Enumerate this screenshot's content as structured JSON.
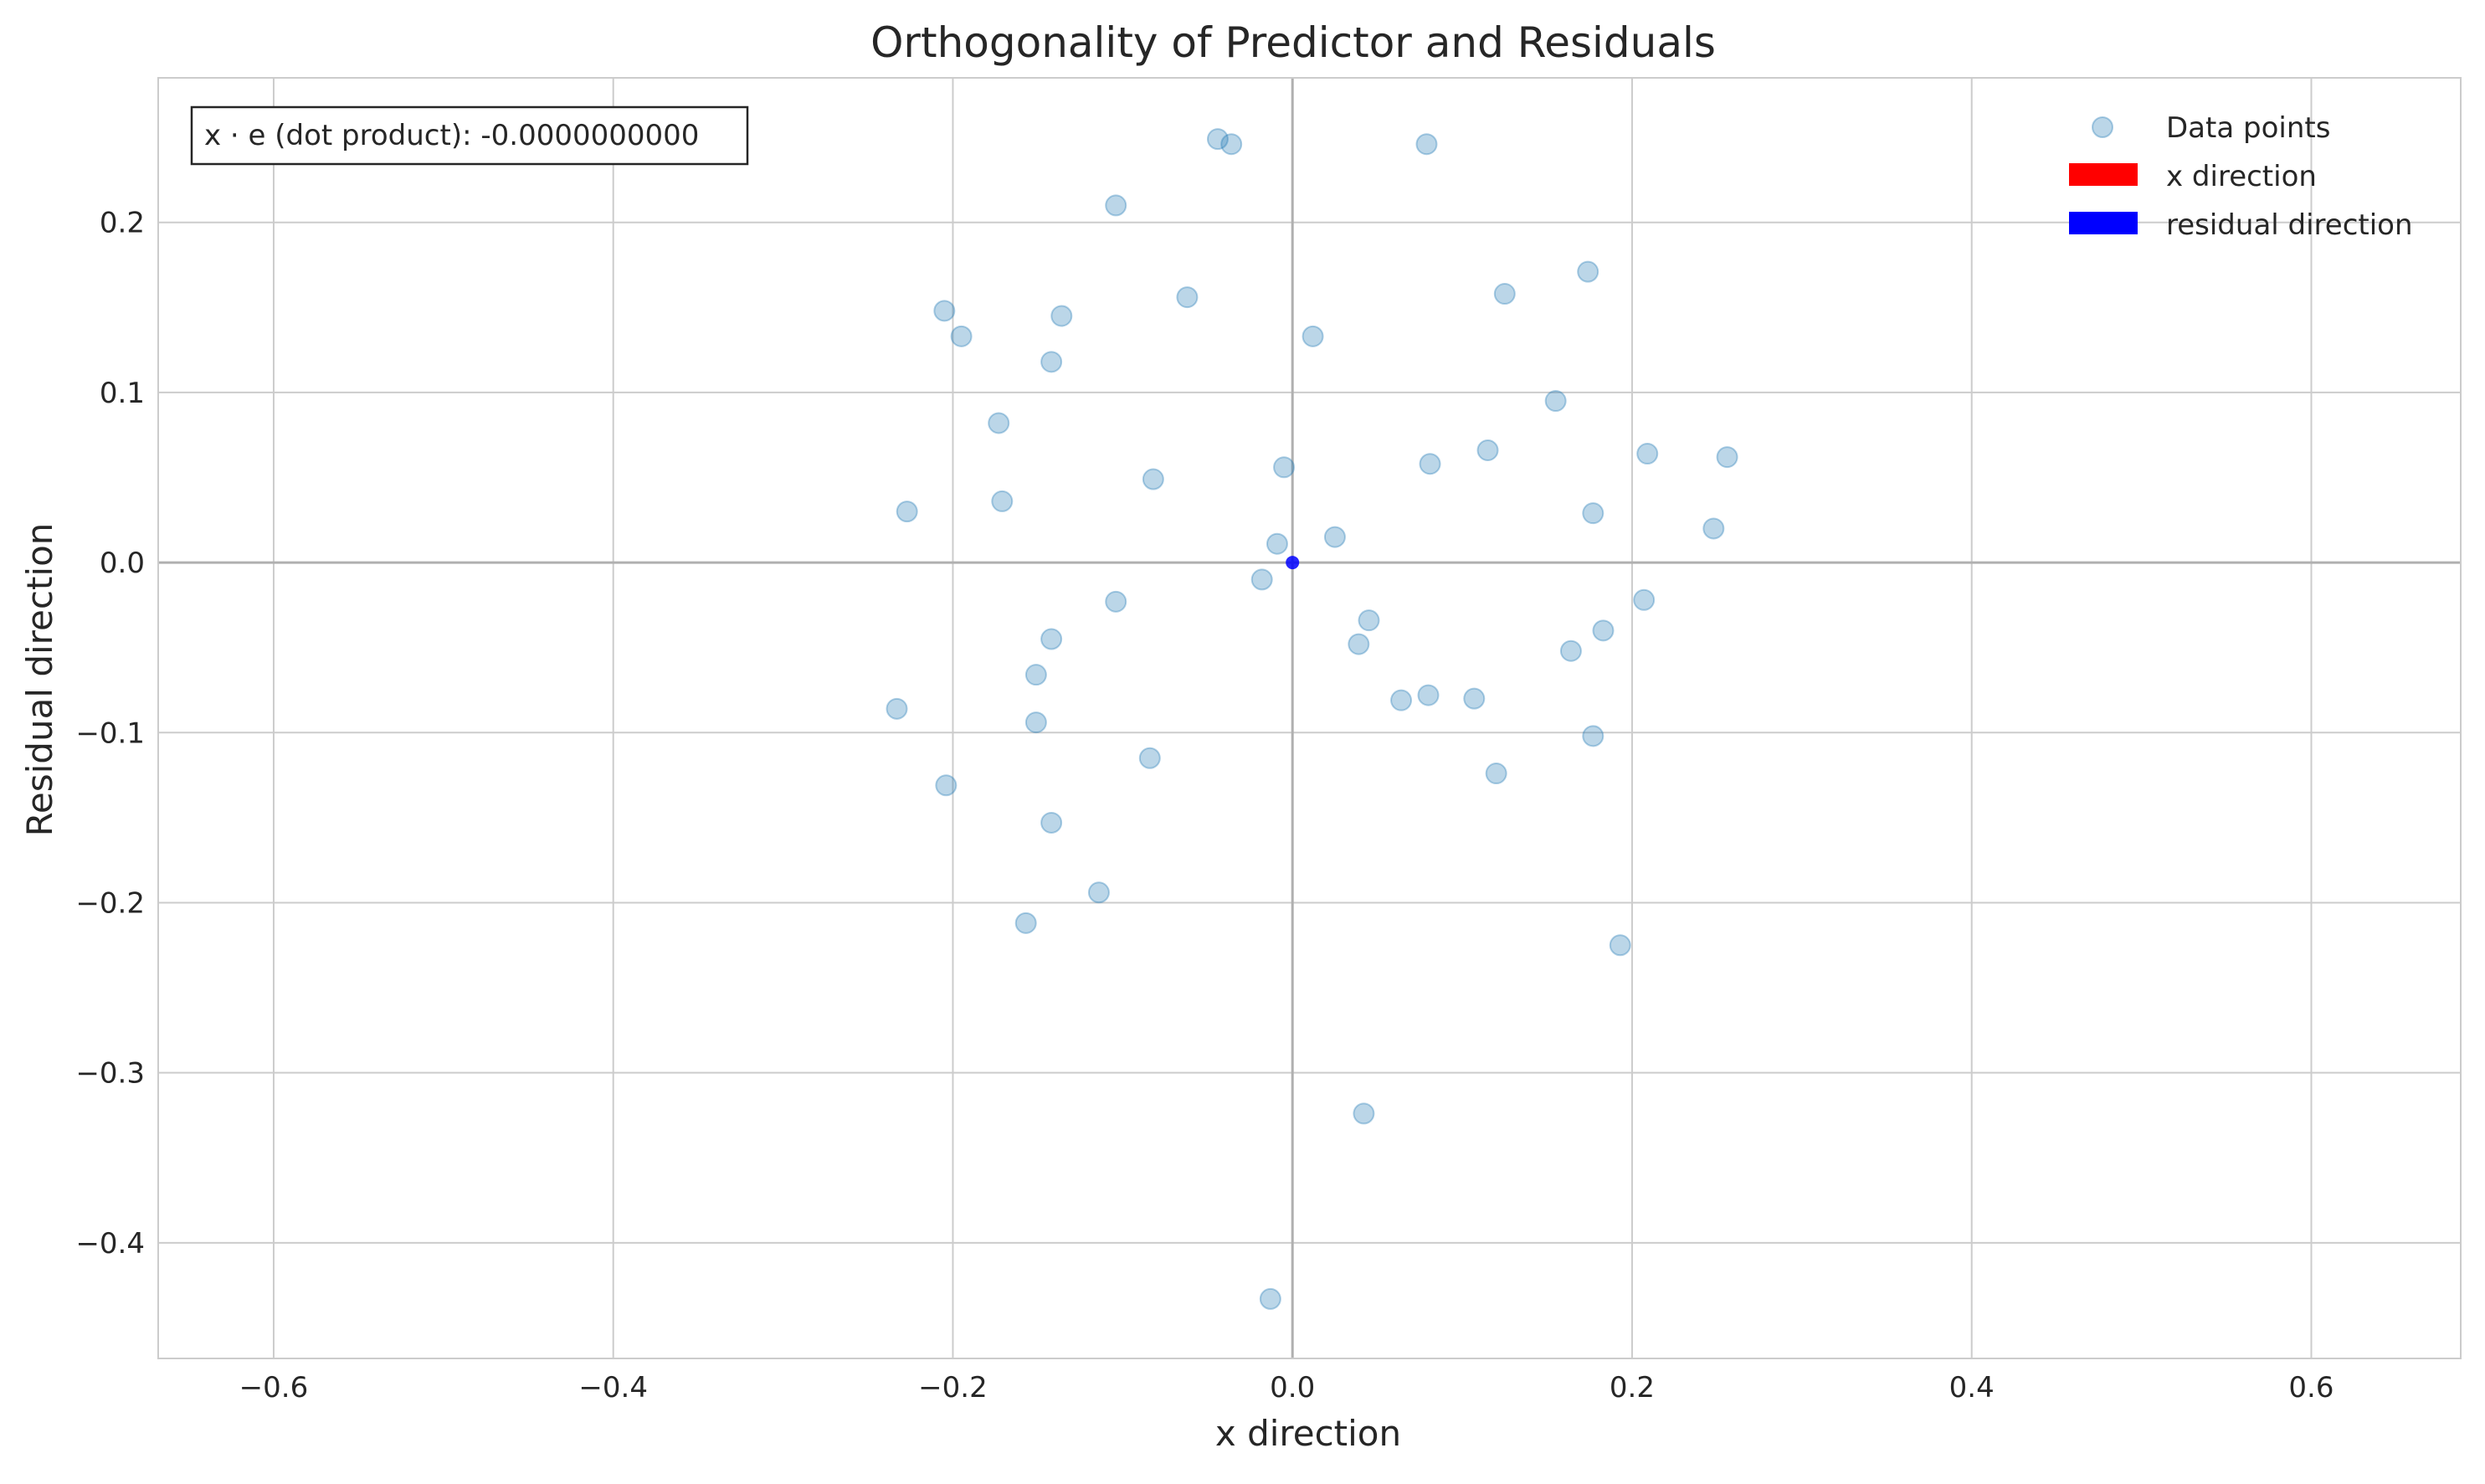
{
  "chart_data": {
    "type": "scatter",
    "title": "Orthogonality of Predictor and Residuals",
    "xlabel": "x direction",
    "ylabel": "Residual direction",
    "xlim": [
      -0.668,
      0.688
    ],
    "ylim": [
      -0.468,
      0.285
    ],
    "xticks": [
      -0.6,
      -0.4,
      -0.2,
      0.0,
      0.2,
      0.4,
      0.6
    ],
    "yticks": [
      -0.4,
      -0.3,
      -0.2,
      -0.1,
      0.0,
      0.1,
      0.2
    ],
    "xtick_labels": [
      "−0.6",
      "−0.4",
      "−0.2",
      "0.0",
      "0.2",
      "0.4",
      "0.6"
    ],
    "ytick_labels": [
      "−0.4",
      "−0.3",
      "−0.2",
      "−0.1",
      "0.0",
      "0.1",
      "0.2"
    ],
    "grid": true,
    "annotation": "x · e (dot product): -0.0000000000",
    "legend": {
      "placement": "top-right",
      "entries": [
        {
          "label": "Data points",
          "marker": "circle",
          "color": "#8fb8da"
        },
        {
          "label": "x direction",
          "marker": "patch",
          "color": "#ff0000"
        },
        {
          "label": "residual direction",
          "marker": "patch",
          "color": "#0000ff"
        }
      ]
    },
    "series": [
      {
        "name": "Data points",
        "color": "#1f77b4",
        "opacity": 0.3,
        "points": [
          {
            "x": -0.044,
            "y": 0.249
          },
          {
            "x": -0.036,
            "y": 0.246
          },
          {
            "x": 0.079,
            "y": 0.246
          },
          {
            "x": -0.104,
            "y": 0.21
          },
          {
            "x": 0.174,
            "y": 0.171
          },
          {
            "x": -0.205,
            "y": 0.148
          },
          {
            "x": -0.062,
            "y": 0.156
          },
          {
            "x": 0.125,
            "y": 0.158
          },
          {
            "x": -0.136,
            "y": 0.145
          },
          {
            "x": -0.195,
            "y": 0.133
          },
          {
            "x": 0.012,
            "y": 0.133
          },
          {
            "x": -0.142,
            "y": 0.118
          },
          {
            "x": 0.155,
            "y": 0.095
          },
          {
            "x": -0.173,
            "y": 0.082
          },
          {
            "x": 0.115,
            "y": 0.066
          },
          {
            "x": 0.209,
            "y": 0.064
          },
          {
            "x": 0.256,
            "y": 0.062
          },
          {
            "x": 0.081,
            "y": 0.058
          },
          {
            "x": -0.005,
            "y": 0.056
          },
          {
            "x": -0.082,
            "y": 0.049
          },
          {
            "x": -0.171,
            "y": 0.036
          },
          {
            "x": -0.227,
            "y": 0.03
          },
          {
            "x": 0.177,
            "y": 0.029
          },
          {
            "x": 0.248,
            "y": 0.02
          },
          {
            "x": 0.025,
            "y": 0.015
          },
          {
            "x": -0.009,
            "y": 0.011
          },
          {
            "x": -0.018,
            "y": -0.01
          },
          {
            "x": -0.104,
            "y": -0.023
          },
          {
            "x": 0.207,
            "y": -0.022
          },
          {
            "x": 0.045,
            "y": -0.034
          },
          {
            "x": 0.183,
            "y": -0.04
          },
          {
            "x": -0.142,
            "y": -0.045
          },
          {
            "x": 0.039,
            "y": -0.048
          },
          {
            "x": 0.164,
            "y": -0.052
          },
          {
            "x": -0.151,
            "y": -0.066
          },
          {
            "x": 0.08,
            "y": -0.078
          },
          {
            "x": 0.107,
            "y": -0.08
          },
          {
            "x": 0.064,
            "y": -0.081
          },
          {
            "x": -0.233,
            "y": -0.086
          },
          {
            "x": -0.151,
            "y": -0.094
          },
          {
            "x": 0.177,
            "y": -0.102
          },
          {
            "x": -0.084,
            "y": -0.115
          },
          {
            "x": 0.12,
            "y": -0.124
          },
          {
            "x": -0.204,
            "y": -0.131
          },
          {
            "x": -0.142,
            "y": -0.153
          },
          {
            "x": -0.114,
            "y": -0.194
          },
          {
            "x": -0.157,
            "y": -0.212
          },
          {
            "x": 0.193,
            "y": -0.225
          },
          {
            "x": 0.042,
            "y": -0.324
          },
          {
            "x": -0.013,
            "y": -0.433
          }
        ]
      },
      {
        "name": "residual direction",
        "color": "#0000ff",
        "points": [
          {
            "x": 0.0,
            "y": 0.0
          }
        ]
      }
    ]
  }
}
